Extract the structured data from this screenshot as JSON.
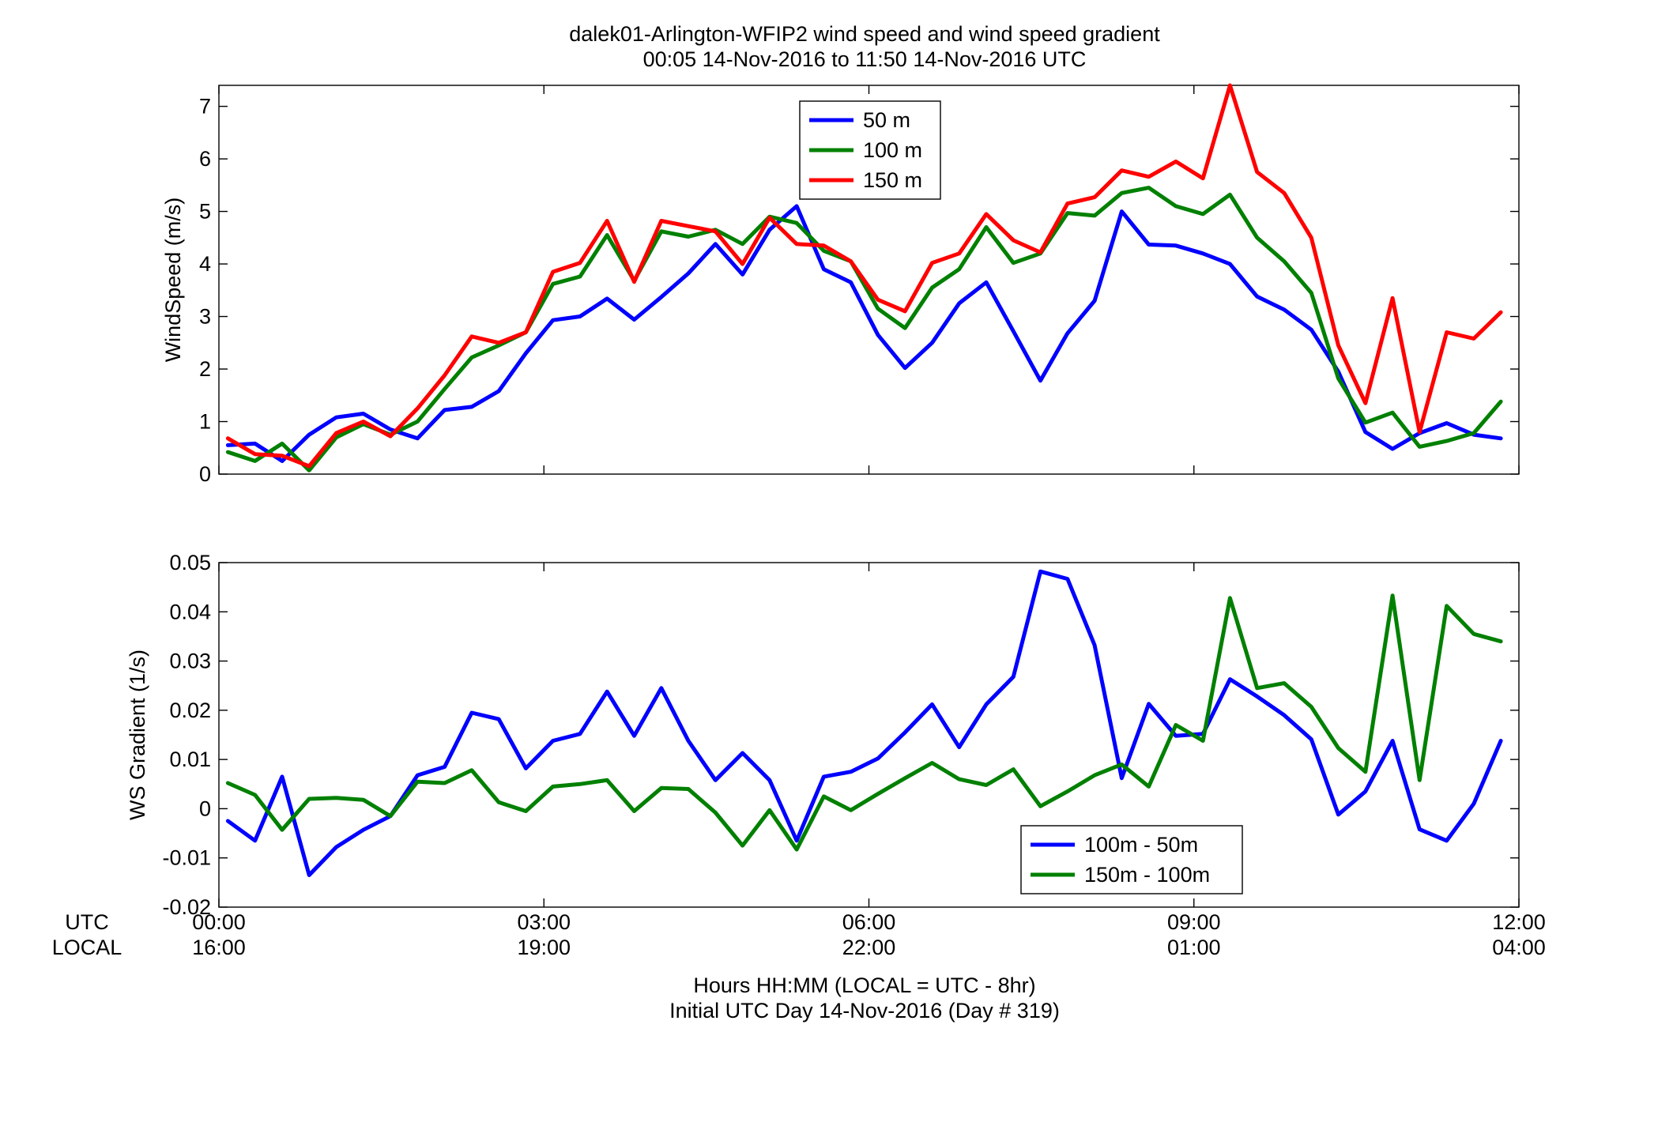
{
  "figure": {
    "title_line1": "dalek01-Arlington-WFIP2  wind speed and wind speed gradient",
    "title_line2": "00:05 14-Nov-2016 to 11:50 14-Nov-2016  UTC",
    "xlabel_line1": "Hours HH:MM  (LOCAL = UTC - 8hr)",
    "xlabel_line2": "Initial UTC Day 14-Nov-2016 (Day # 319)",
    "row_label_utc": "UTC",
    "row_label_local": "LOCAL",
    "utc_ticks": [
      "00:00",
      "03:00",
      "06:00",
      "09:00",
      "12:00"
    ],
    "local_ticks": [
      "16:00",
      "19:00",
      "22:00",
      "01:00",
      "04:00"
    ],
    "tick_hours": [
      0,
      3,
      6,
      9,
      12
    ]
  },
  "chart_data": [
    {
      "type": "line",
      "ylabel": "WindSpeed (m/s)",
      "xlim": [
        0,
        12
      ],
      "ylim": [
        0,
        7.4
      ],
      "yticks": [
        0,
        1,
        2,
        3,
        4,
        5,
        6,
        7
      ],
      "ytick_labels": [
        "0",
        "1",
        "2",
        "3",
        "4",
        "5",
        "6",
        "7"
      ],
      "x_start": 0.0833,
      "x_step": 0.25,
      "legend_location": "top-center",
      "series": [
        {
          "name": "50 m",
          "color": "#0000ff",
          "values": [
            0.55,
            0.58,
            0.25,
            0.75,
            1.08,
            1.15,
            0.85,
            0.68,
            1.22,
            1.28,
            1.58,
            2.3,
            2.93,
            3.0,
            3.34,
            2.94,
            3.37,
            3.82,
            4.38,
            3.8,
            4.65,
            5.1,
            3.9,
            3.65,
            2.65,
            2.02,
            2.5,
            3.25,
            3.65,
            2.72,
            1.78,
            2.68,
            3.3,
            5.0,
            4.37,
            4.35,
            4.2,
            4.0,
            3.38,
            3.13,
            2.75,
            1.95,
            0.8,
            0.48,
            0.78,
            0.97,
            0.75,
            0.68
          ]
        },
        {
          "name": "100 m",
          "color": "#008000",
          "values": [
            0.42,
            0.25,
            0.58,
            0.07,
            0.7,
            0.95,
            0.75,
            1.0,
            1.62,
            2.22,
            2.45,
            2.7,
            3.62,
            3.76,
            4.55,
            3.68,
            4.62,
            4.52,
            4.65,
            4.38,
            4.9,
            4.78,
            4.25,
            4.05,
            3.15,
            2.78,
            3.55,
            3.9,
            4.7,
            4.02,
            4.2,
            4.97,
            4.92,
            5.35,
            5.45,
            5.1,
            4.95,
            5.32,
            4.5,
            4.05,
            3.45,
            1.82,
            0.98,
            1.17,
            0.52,
            0.63,
            0.78,
            1.38
          ]
        },
        {
          "name": "150 m",
          "color": "#ff0000",
          "values": [
            0.68,
            0.38,
            0.35,
            0.15,
            0.78,
            1.0,
            0.72,
            1.25,
            1.88,
            2.62,
            2.5,
            2.7,
            3.85,
            4.02,
            4.82,
            3.66,
            4.82,
            4.72,
            4.62,
            4.0,
            4.88,
            4.38,
            4.35,
            4.05,
            3.32,
            3.1,
            4.02,
            4.2,
            4.95,
            4.45,
            4.22,
            5.15,
            5.27,
            5.78,
            5.66,
            5.95,
            5.63,
            7.4,
            5.75,
            5.35,
            4.5,
            2.45,
            1.35,
            3.35,
            0.8,
            2.7,
            2.58,
            3.08
          ]
        }
      ]
    },
    {
      "type": "line",
      "ylabel": "WS Gradient (1/s)",
      "xlim": [
        0,
        12
      ],
      "ylim": [
        -0.02,
        0.05
      ],
      "yticks": [
        -0.02,
        -0.01,
        0,
        0.01,
        0.02,
        0.03,
        0.04,
        0.05
      ],
      "ytick_labels": [
        "-0.02",
        "-0.01",
        "0",
        "0.01",
        "0.02",
        "0.03",
        "0.04",
        "0.05"
      ],
      "x_start": 0.0833,
      "x_step": 0.25,
      "legend_location": "bottom-right",
      "series": [
        {
          "name": "100m - 50m",
          "color": "#0000ff",
          "values": [
            -0.0025,
            -0.0065,
            0.0065,
            -0.0135,
            -0.0078,
            -0.0043,
            -0.0015,
            0.0068,
            0.0085,
            0.0195,
            0.0182,
            0.0082,
            0.0138,
            0.0152,
            0.0238,
            0.0148,
            0.0245,
            0.0138,
            0.0058,
            0.0113,
            0.0058,
            -0.0065,
            0.0065,
            0.0075,
            0.0102,
            0.0155,
            0.0212,
            0.0125,
            0.0212,
            0.0268,
            0.0482,
            0.0467,
            0.0332,
            0.0062,
            0.0213,
            0.0148,
            0.0152,
            0.0263,
            0.0228,
            0.019,
            0.0141,
            -0.0012,
            0.0035,
            0.0138,
            -0.0042,
            -0.0065,
            0.001,
            0.0138
          ]
        },
        {
          "name": "150m - 100m",
          "color": "#008000",
          "values": [
            0.0052,
            0.0028,
            -0.0043,
            0.002,
            0.0022,
            0.0018,
            -0.0015,
            0.0055,
            0.0052,
            0.0078,
            0.0013,
            -0.0005,
            0.0045,
            0.005,
            0.0058,
            -0.0005,
            0.0042,
            0.004,
            -0.0008,
            -0.0075,
            -0.0003,
            -0.0083,
            0.0025,
            -0.0003,
            0.003,
            0.0062,
            0.0093,
            0.006,
            0.0048,
            0.008,
            0.0005,
            0.0035,
            0.0068,
            0.009,
            0.0045,
            0.017,
            0.0138,
            0.0428,
            0.0245,
            0.0255,
            0.0207,
            0.0123,
            0.0075,
            0.0433,
            0.0058,
            0.0412,
            0.0355,
            0.034
          ]
        }
      ]
    }
  ]
}
